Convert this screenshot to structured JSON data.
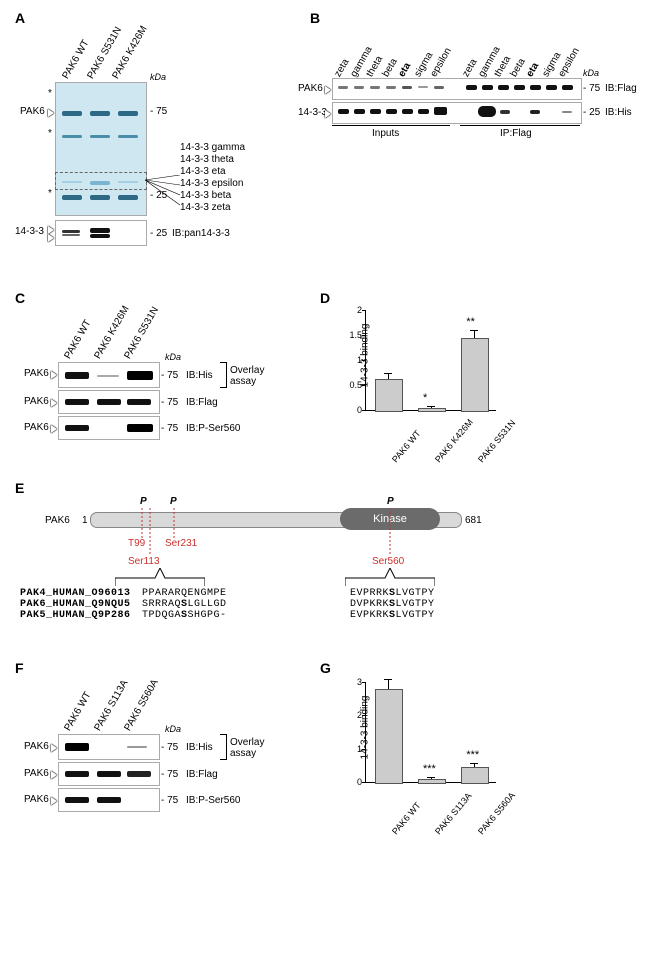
{
  "panelA": {
    "label": "A",
    "lane_labels": [
      "PAK6 WT",
      "PAK6 S531N",
      "PAK6 K426M"
    ],
    "kDa_label": "kDa",
    "markers": [
      "75",
      "25",
      "25"
    ],
    "left_labels": [
      "PAK6",
      "14-3-3"
    ],
    "id_list_title": "",
    "id_list": [
      "14-3-3 gamma",
      "14-3-3 theta",
      "14-3-3 eta",
      "14-3-3 epsilon",
      "14-3-3 beta",
      "14-3-3 zeta"
    ],
    "ib_label": "IB:pan14-3-3",
    "asterisks": [
      "*",
      "*",
      "*"
    ],
    "gel_color": "#79b7d1",
    "dark_stain": "#2e6a85"
  },
  "panelB": {
    "label": "B",
    "isoforms": [
      "zeta",
      "gamma",
      "theta",
      "beta",
      "eta",
      "sigma",
      "epsilon"
    ],
    "left_labels": [
      "PAK6",
      "14-3-3"
    ],
    "right_labels": [
      "IB:Flag",
      "IB:His"
    ],
    "markers": [
      "75",
      "25"
    ],
    "kDa_label": "kDa",
    "bottom_inputs": "Inputs",
    "bottom_ip": "IP:Flag"
  },
  "panelC": {
    "label": "C",
    "lane_labels": [
      "PAK6 WT",
      "PAK6 K426M",
      "PAK6 S531N"
    ],
    "left_labels": [
      "PAK6",
      "PAK6",
      "PAK6"
    ],
    "right_labels": [
      "IB:His",
      "IB:Flag",
      "IB:P-Ser560"
    ],
    "overlay_label": "Overlay\nassay",
    "marker": "75",
    "kDa_label": "kDa"
  },
  "panelD": {
    "label": "D",
    "type": "bar",
    "ylabel": "14-3-3 binding",
    "categories": [
      "PAK6 WT",
      "PAK6 K426M",
      "PAK6 S531N"
    ],
    "values": [
      0.62,
      0.05,
      1.45
    ],
    "errs": [
      0.12,
      0.03,
      0.15
    ],
    "sig": [
      "",
      "*",
      "**"
    ],
    "ylim": [
      0,
      2.0
    ],
    "ytick_step": 0.5,
    "bar_color": "#cccccc",
    "bar_width": 0.6
  },
  "panelE": {
    "label": "E",
    "protein": "PAK6",
    "nterm": "1",
    "cterm": "681",
    "domain": "Kinase",
    "p_marks": [
      "P",
      "P",
      "P"
    ],
    "sites": [
      "T99",
      "Ser113",
      "Ser231",
      "Ser560"
    ],
    "align_names": [
      "PAK4_HUMAN_O96013",
      "PAK6_HUMAN_Q9NQU5",
      "PAK5_HUMAN_Q9P286"
    ],
    "align_col1": [
      "PPARARQENGMPE",
      "SRRRAQSLGLLGD",
      "TPDQGASSHGPG-"
    ],
    "align_col2": [
      "EVPRRKSLVGTPY",
      "DVPKRKSLVGTPY",
      "EVPKRKSLVGTPY"
    ]
  },
  "panelF": {
    "label": "F",
    "lane_labels": [
      "PAK6 WT",
      "PAK6 S113A",
      "PAK6 S560A"
    ],
    "left_labels": [
      "PAK6",
      "PAK6",
      "PAK6"
    ],
    "right_labels": [
      "IB:His",
      "IB:Flag",
      "IB:P-Ser560"
    ],
    "overlay_label": "Overlay\nassay",
    "marker": "75",
    "kDa_label": "kDa"
  },
  "panelG": {
    "label": "G",
    "type": "bar",
    "ylabel": "14-3-3 binding",
    "categories": [
      "PAK6 WT",
      "PAK6 S113A",
      "PAK6 S560A"
    ],
    "values": [
      2.8,
      0.1,
      0.45
    ],
    "errs": [
      0.3,
      0.05,
      0.12
    ],
    "sig": [
      "",
      "***",
      "***"
    ],
    "ylim": [
      0,
      3.0
    ],
    "ytick_step": 1,
    "bar_color": "#cccccc",
    "bar_width": 0.6
  },
  "colors": {
    "site_red": "#c9302c",
    "domain_fill": "#6b6b6b",
    "body_fill": "#d9d9d9"
  }
}
